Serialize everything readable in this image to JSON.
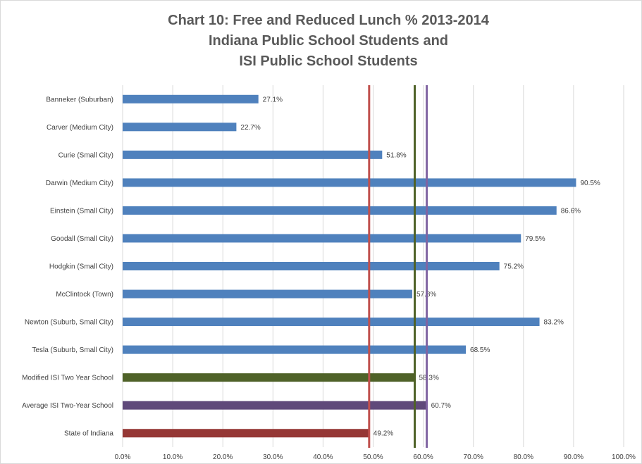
{
  "chart_data": {
    "type": "bar",
    "orientation": "horizontal",
    "title": "Chart 10: Free and Reduced Lunch % 2013-2014 Indiana Public School Students and ISI Public School Students",
    "title_lines": [
      "Chart 10: Free and Reduced Lunch % 2013-2014",
      "Indiana Public School Students and",
      "ISI Public School Students"
    ],
    "xlabel": "",
    "ylabel": "",
    "xlim": [
      0,
      100
    ],
    "x_ticks": [
      "0.0%",
      "10.0%",
      "20.0%",
      "30.0%",
      "40.0%",
      "50.0%",
      "60.0%",
      "70.0%",
      "80.0%",
      "90.0%",
      "100.0%"
    ],
    "grid": true,
    "legend": "none",
    "categories": [
      "Banneker (Suburban)",
      "Carver (Medium City)",
      "Curie (Small City)",
      "Darwin (Medium City)",
      "Einstein (Small City)",
      "Goodall (Small City)",
      "Hodgkin (Small City)",
      "McClintock (Town)",
      "Newton (Suburb, Small City)",
      "Tesla (Suburb, Small City)",
      "Modified ISI Two Year School",
      "Average ISI Two-Year School",
      "State of Indiana"
    ],
    "values": [
      27.1,
      22.7,
      51.8,
      90.5,
      86.6,
      79.5,
      75.2,
      57.8,
      83.2,
      68.5,
      58.3,
      60.7,
      49.2
    ],
    "value_labels": [
      "27.1%",
      "22.7%",
      "51.8%",
      "90.5%",
      "86.6%",
      "79.5%",
      "75.2%",
      "57.8%",
      "83.2%",
      "68.5%",
      "58.3%",
      "60.7%",
      "49.2%"
    ],
    "bar_colors": [
      "#4f81bd",
      "#4f81bd",
      "#4f81bd",
      "#4f81bd",
      "#4f81bd",
      "#4f81bd",
      "#4f81bd",
      "#4f81bd",
      "#4f81bd",
      "#4f81bd",
      "#4f6228",
      "#5f497a",
      "#953735"
    ],
    "reference_lines": [
      {
        "value": 49.2,
        "color": "#c0504d"
      },
      {
        "value": 58.3,
        "color": "#4f6228"
      },
      {
        "value": 60.7,
        "color": "#8064a2"
      }
    ]
  }
}
